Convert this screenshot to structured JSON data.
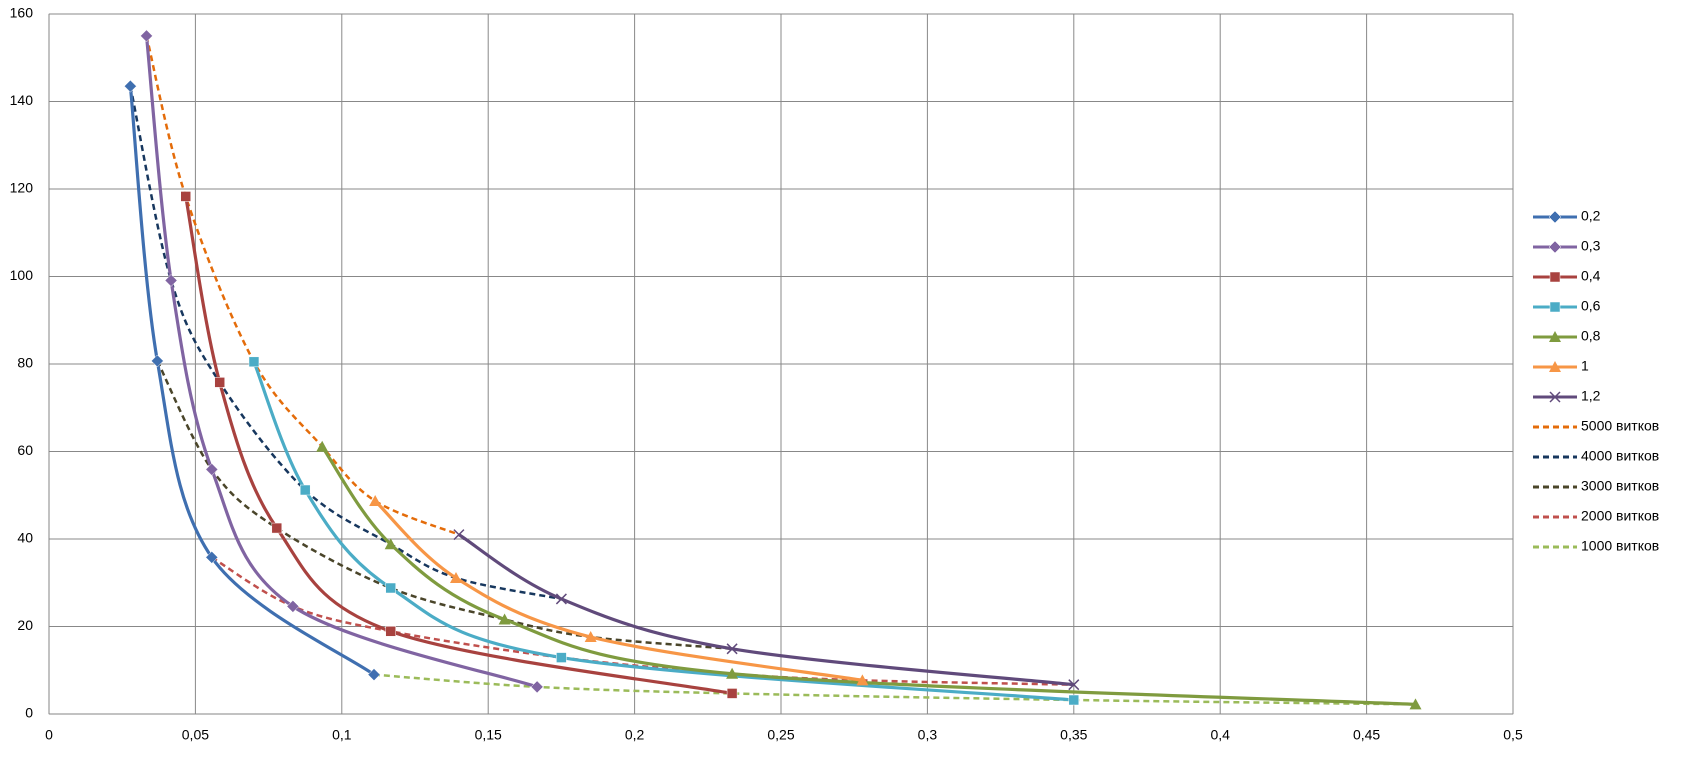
{
  "chart_data": {
    "type": "line",
    "xlim": [
      0,
      0.5
    ],
    "xticks": [
      0,
      {
        "value": 0.05,
        "label": "0,05"
      },
      {
        "value": 0.1,
        "label": "0,1"
      },
      {
        "value": 0.15,
        "label": "0,15"
      },
      {
        "value": 0.2,
        "label": "0,2"
      },
      {
        "value": 0.25,
        "label": "0,25"
      },
      {
        "value": 0.3,
        "label": "0,3"
      },
      {
        "value": 0.35,
        "label": "0,35"
      },
      {
        "value": 0.4,
        "label": "0,4"
      },
      {
        "value": 0.45,
        "label": "0,45"
      },
      {
        "value": 0.5,
        "label": "0,5"
      }
    ],
    "ylim": [
      0,
      160
    ],
    "yticks": [
      0,
      20,
      40,
      60,
      80,
      100,
      120,
      140,
      160
    ],
    "grid": true,
    "legend": "right",
    "series": [
      {
        "name": "0,2",
        "color": "#3f6fb0",
        "dash": false,
        "marker": "diamond",
        "x": [
          0.0278,
          0.037,
          0.0556,
          0.111
        ],
        "values": [
          143.5,
          80.7,
          35.8,
          9
        ]
      },
      {
        "name": "0,3",
        "color": "#8064a2",
        "dash": false,
        "marker": "diamond",
        "x": [
          0.0333,
          0.0417,
          0.0556,
          0.0833,
          0.1667
        ],
        "values": [
          155,
          99.1,
          55.9,
          24.6,
          6.2
        ]
      },
      {
        "name": "0,4",
        "color": "#a8423f",
        "dash": false,
        "marker": "square",
        "x": [
          0.0467,
          0.0583,
          0.0778,
          0.1167,
          0.2333
        ],
        "values": [
          118.3,
          75.8,
          42.5,
          18.9,
          4.7
        ]
      },
      {
        "name": "0,6",
        "color": "#4bacc6",
        "dash": false,
        "marker": "square",
        "x": [
          0.07,
          0.0875,
          0.1167,
          0.175,
          0.35
        ],
        "values": [
          80.5,
          51.2,
          28.8,
          12.9,
          3.2
        ]
      },
      {
        "name": "0,8",
        "color": "#7f9b3f",
        "dash": false,
        "marker": "triangle",
        "x": [
          0.0933,
          0.1167,
          0.1556,
          0.2333,
          0.4667
        ],
        "values": [
          61.1,
          38.8,
          21.6,
          9.2,
          2.2
        ]
      },
      {
        "name": "1",
        "color": "#f79646",
        "dash": false,
        "marker": "triangle",
        "x": [
          0.1114,
          0.139,
          0.185,
          0.2778
        ],
        "values": [
          48.7,
          31.1,
          17.6,
          7.7
        ]
      },
      {
        "name": "1,2",
        "color": "#604a7b",
        "dash": false,
        "marker": "x",
        "x": [
          0.14,
          0.175,
          0.2333,
          0.35
        ],
        "values": [
          41,
          26.3,
          14.9,
          6.7
        ]
      },
      {
        "name": "5000 витков",
        "color": "#e46c0a",
        "dash": true,
        "marker": "none",
        "x": [
          0.0333,
          0.0467,
          0.07,
          0.0933,
          0.1114,
          0.14
        ],
        "values": [
          155,
          118.3,
          80.5,
          61.1,
          48.7,
          41
        ]
      },
      {
        "name": "4000 витков",
        "color": "#17375e",
        "dash": true,
        "marker": "none",
        "x": [
          0.0278,
          0.0417,
          0.0583,
          0.0875,
          0.1167,
          0.139,
          0.175
        ],
        "values": [
          143.5,
          99.1,
          75.8,
          51.2,
          38.8,
          31.1,
          26.3
        ]
      },
      {
        "name": "3000 витков",
        "color": "#4a452a",
        "dash": true,
        "marker": "none",
        "x": [
          0.037,
          0.0556,
          0.0778,
          0.1167,
          0.1556,
          0.185,
          0.2333
        ],
        "values": [
          80.7,
          55.9,
          42.5,
          28.8,
          21.6,
          17.6,
          14.9
        ]
      },
      {
        "name": "2000 витков",
        "color": "#c0504d",
        "dash": true,
        "marker": "none",
        "x": [
          0.0556,
          0.0833,
          0.1167,
          0.175,
          0.2333,
          0.2778,
          0.35
        ],
        "values": [
          35.8,
          24.6,
          18.9,
          12.9,
          9.2,
          7.7,
          6.7
        ]
      },
      {
        "name": "1000 витков",
        "color": "#9bbb59",
        "dash": true,
        "marker": "none",
        "x": [
          0.111,
          0.1667,
          0.2333,
          0.35,
          0.4667
        ],
        "values": [
          9,
          6.2,
          4.7,
          3.2,
          2.2
        ]
      }
    ]
  }
}
